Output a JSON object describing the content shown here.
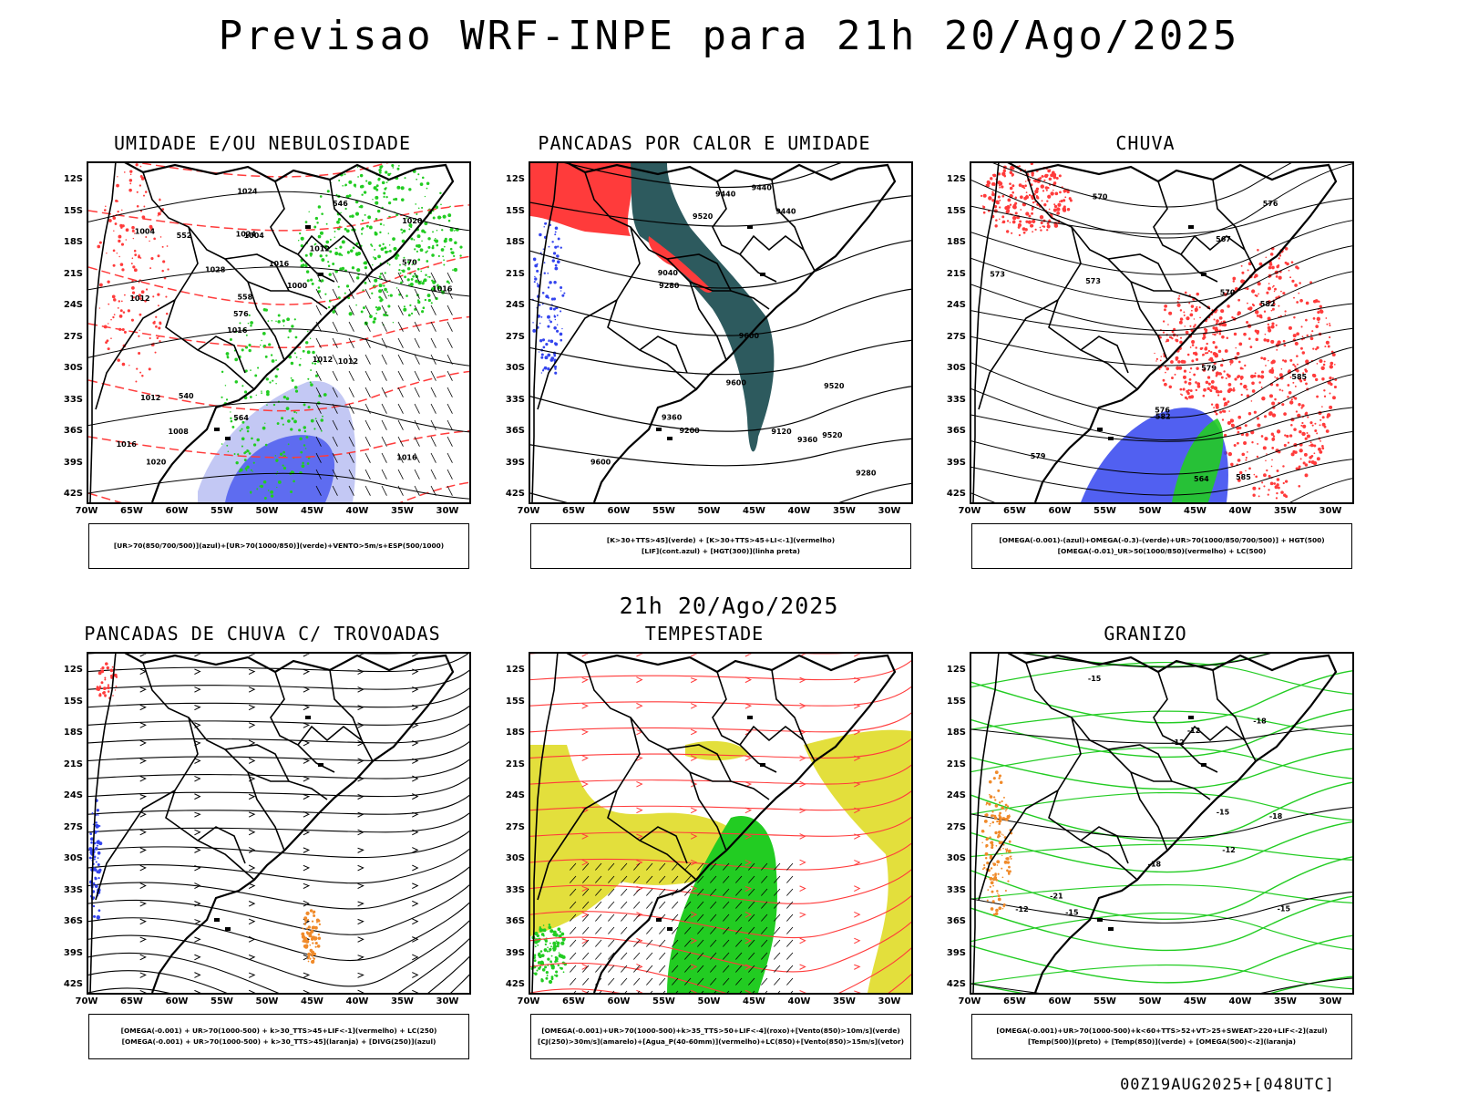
{
  "header": {
    "title": "Previsao WRF-INPE  para 21h 20/Ago/2025",
    "mid_title": "21h 20/Ago/2025",
    "footer": "00Z19AUG2025+[048UTC]"
  },
  "axes": {
    "lat_labels": [
      "12S",
      "15S",
      "18S",
      "21S",
      "24S",
      "27S",
      "30S",
      "33S",
      "36S",
      "39S",
      "42S"
    ],
    "lon_labels": [
      "70W",
      "65W",
      "60W",
      "55W",
      "50W",
      "45W",
      "40W",
      "35W",
      "30W"
    ]
  },
  "colors": {
    "red": "#ff3b3b",
    "green": "#22cc22",
    "blue": "#3344ee",
    "lightblue": "#aab0f0",
    "teal": "#2d5a5e",
    "yellow": "#e3df3c",
    "orange": "#f08a2a"
  },
  "panels": [
    {
      "title": "UMIDADE E/OU NEBULOSIDADE",
      "legend": [
        "[UR>70(850/700/500)](azul)+[UR>70(1000/850)](verde)+VENTO>5m/s+ESP(500/1000)"
      ],
      "contour_labels": [
        "1016",
        "1012",
        "1020",
        "1016",
        "1012",
        "1020",
        "1024",
        "1016",
        "1012",
        "1028",
        "1016",
        "1008",
        "1004",
        "1000",
        "1012",
        "1004",
        "1024",
        "1016",
        "1012",
        "570",
        "576",
        "564",
        "558",
        "552",
        "546",
        "540"
      ]
    },
    {
      "title": "PANCADAS POR CALOR E UMIDADE",
      "legend": [
        "[K>30+TTS>45](verde) + [K>30+TTS>45+LI<-1](vermelho)",
        "[LIF](cont.azul) + [HGT(300)](linha preta)"
      ],
      "contour_labels": [
        "9600",
        "9520",
        "9600",
        "9600",
        "9520",
        "9440",
        "9520",
        "9440",
        "9360",
        "9360",
        "9280",
        "9280",
        "9200",
        "9440",
        "9120",
        "9040"
      ]
    },
    {
      "title": "CHUVA",
      "legend": [
        "[OMEGA(-0.001)-(azul)+OMEGA(-0.3)-(verde)+UR>70(1000/850/700/500)] + HGT(500)",
        "[OMEGA(-0.01)_UR>50(1000/850)(vermelho) + LC(500)"
      ],
      "contour_labels": [
        "585",
        "585",
        "582",
        "579",
        "576",
        "573",
        "570",
        "567",
        "564",
        "582",
        "579",
        "576",
        "573",
        "570"
      ]
    },
    {
      "title": "PANCADAS DE CHUVA C/ TROVOADAS",
      "legend": [
        "[OMEGA(-0.001) + UR>70(1000-500) + k>30_TTS>45+LIF<-1](vermelho) + LC(250)",
        "[OMEGA(-0.001) + UR>70(1000-500) + k>30_TTS>45](laranja) + [DIVG(250)](azul)"
      ],
      "contour_labels": []
    },
    {
      "title": "TEMPESTADE",
      "legend": [
        "[OMEGA(-0.001)+UR>70(1000-500)+k>35_TTS>50+LIF<-4](roxo)+[Vento(850)>10m/s](verde)",
        "[CJ(250)>30m/s](amarelo)+[Agua_P(40-60mm)](vermelho)+LC(850)+[Vento(850)>15m/s](vetor)"
      ],
      "contour_labels": []
    },
    {
      "title": "GRANIZO",
      "legend": [
        "[OMEGA(-0.001)+UR>70(1000-500)+k<60+TTS>52+VT>25+SWEAT>220+LIF<-2](azul)",
        "[Temp(500)](preto) + [Temp(850)](verde) + [OMEGA(500)<-2](laranja)"
      ],
      "contour_labels": [
        "-12",
        "-12",
        "-12",
        "-15",
        "-15",
        "-18",
        "-15",
        "-18",
        "-12",
        "-15",
        "-18",
        "-21"
      ]
    }
  ]
}
